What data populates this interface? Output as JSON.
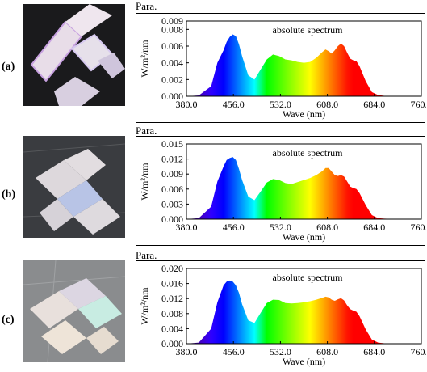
{
  "para_label": "Para.",
  "rows": [
    {
      "label": "(a)",
      "photo_desc": "ceiling-panel-photo-a"
    },
    {
      "label": "(b)",
      "photo_desc": "ceiling-panel-photo-b"
    },
    {
      "label": "(c)",
      "photo_desc": "ceiling-panel-photo-c"
    }
  ],
  "chart_data": [
    {
      "type": "area",
      "title": "absolute spectrum",
      "xlabel": "Wave (nm)",
      "ylabel": "W/m²/nm",
      "xlim": [
        380,
        760
      ],
      "ylim": [
        0,
        0.009
      ],
      "xticks": [
        "380.0",
        "456.0",
        "532.0",
        "608.0",
        "684.0",
        "760.0"
      ],
      "yticks": [
        "0.000",
        "0.002",
        "0.004",
        "0.006",
        "0.008",
        "0.009"
      ],
      "x": [
        380,
        400,
        420,
        430,
        440,
        445,
        450,
        455,
        460,
        465,
        470,
        480,
        490,
        500,
        510,
        520,
        530,
        540,
        550,
        560,
        570,
        580,
        590,
        600,
        605,
        610,
        615,
        620,
        625,
        630,
        635,
        640,
        645,
        650,
        655,
        660,
        670,
        680,
        690,
        700,
        720,
        740,
        760
      ],
      "y": [
        0,
        0.0001,
        0.0012,
        0.004,
        0.0055,
        0.0065,
        0.0071,
        0.0074,
        0.0072,
        0.0062,
        0.0048,
        0.0025,
        0.002,
        0.0032,
        0.0044,
        0.005,
        0.0048,
        0.0044,
        0.0043,
        0.0041,
        0.004,
        0.0041,
        0.0046,
        0.0053,
        0.0056,
        0.0054,
        0.0051,
        0.0055,
        0.006,
        0.0063,
        0.006,
        0.0052,
        0.0045,
        0.0043,
        0.0042,
        0.0036,
        0.0018,
        0.0005,
        0.00015,
        5e-05,
        0,
        0,
        0
      ]
    },
    {
      "type": "area",
      "title": "absolute spectrum",
      "xlabel": "Wave (nm)",
      "ylabel": "W/m²/nm",
      "xlim": [
        380,
        760
      ],
      "ylim": [
        0,
        0.015
      ],
      "xticks": [
        "380.0",
        "456.0",
        "532.0",
        "608.0",
        "684.0",
        "760.0"
      ],
      "yticks": [
        "0.000",
        "0.003",
        "0.006",
        "0.009",
        "0.012",
        "0.015"
      ],
      "x": [
        380,
        400,
        420,
        430,
        440,
        445,
        450,
        455,
        460,
        465,
        470,
        480,
        490,
        500,
        510,
        520,
        530,
        540,
        550,
        560,
        570,
        580,
        590,
        600,
        605,
        610,
        615,
        620,
        625,
        630,
        635,
        640,
        645,
        650,
        655,
        660,
        670,
        680,
        690,
        700,
        720,
        740,
        760
      ],
      "y": [
        0,
        0.0002,
        0.0025,
        0.0075,
        0.0105,
        0.0118,
        0.0122,
        0.0124,
        0.0118,
        0.01,
        0.0078,
        0.0045,
        0.0038,
        0.0055,
        0.0073,
        0.008,
        0.0078,
        0.0072,
        0.007,
        0.0074,
        0.0078,
        0.0082,
        0.0088,
        0.0096,
        0.0102,
        0.0102,
        0.0095,
        0.0088,
        0.0086,
        0.0088,
        0.0085,
        0.0075,
        0.0065,
        0.0062,
        0.006,
        0.0052,
        0.0028,
        0.0008,
        0.0002,
        0.0001,
        0,
        0,
        0
      ]
    },
    {
      "type": "area",
      "title": "absolute spectrum",
      "xlabel": "Wave (nm)",
      "ylabel": "W/m²/nm",
      "xlim": [
        380,
        760
      ],
      "ylim": [
        0,
        0.02
      ],
      "xticks": [
        "380.0",
        "456.0",
        "532.0",
        "608.0",
        "684.0",
        "760.0"
      ],
      "yticks": [
        "0.000",
        "0.004",
        "0.008",
        "0.012",
        "0.016",
        "0.020"
      ],
      "x": [
        380,
        400,
        420,
        430,
        440,
        445,
        450,
        455,
        460,
        465,
        470,
        480,
        490,
        500,
        510,
        520,
        530,
        540,
        550,
        560,
        570,
        580,
        590,
        600,
        605,
        610,
        615,
        620,
        625,
        630,
        635,
        640,
        645,
        650,
        655,
        660,
        670,
        680,
        690,
        700,
        720,
        740,
        760
      ],
      "y": [
        0,
        0.0003,
        0.004,
        0.011,
        0.0155,
        0.0165,
        0.0168,
        0.0165,
        0.0155,
        0.0135,
        0.0105,
        0.0062,
        0.0055,
        0.0082,
        0.0108,
        0.0117,
        0.0116,
        0.0108,
        0.0107,
        0.0108,
        0.011,
        0.0113,
        0.0117,
        0.0122,
        0.0125,
        0.0123,
        0.0117,
        0.0114,
        0.0118,
        0.0121,
        0.0115,
        0.0102,
        0.0092,
        0.0088,
        0.0085,
        0.0073,
        0.0038,
        0.0011,
        0.0003,
        0.0001,
        0,
        0,
        0
      ]
    }
  ]
}
